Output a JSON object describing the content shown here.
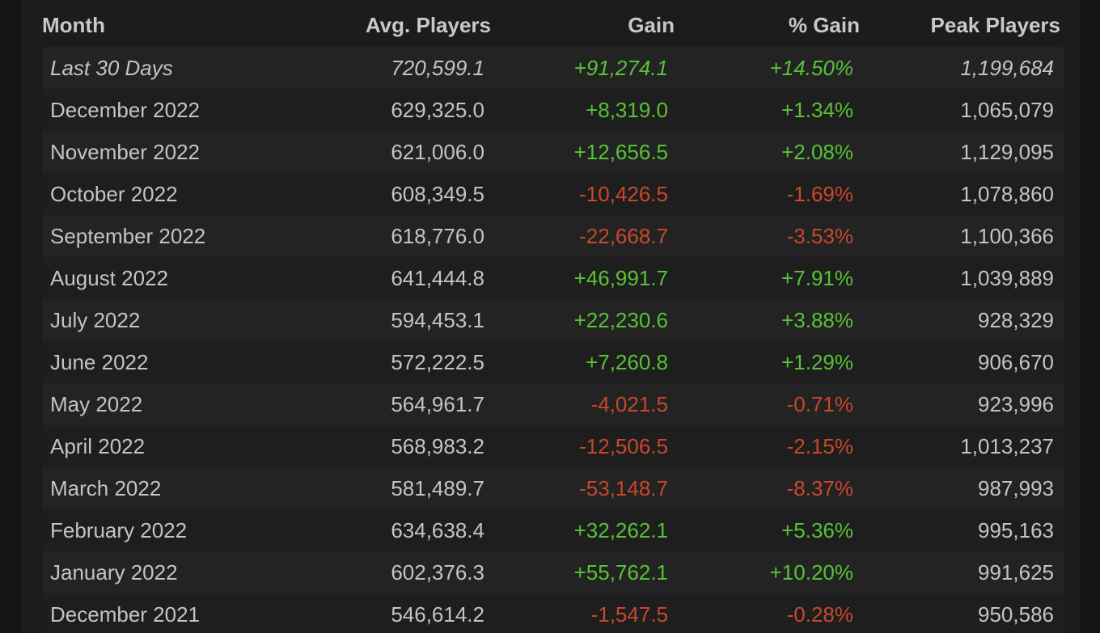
{
  "table": {
    "header": [
      "Month",
      "Avg. Players",
      "Gain",
      "% Gain",
      "Peak Players"
    ],
    "rows": [
      [
        "Last 30 Days",
        "720,599.1",
        "+91,274.1",
        "+14.50%",
        "1,199,684"
      ],
      [
        "December 2022",
        "629,325.0",
        "+8,319.0",
        "+1.34%",
        "1,065,079"
      ],
      [
        "November 2022",
        "621,006.0",
        "+12,656.5",
        "+2.08%",
        "1,129,095"
      ],
      [
        "October 2022",
        "608,349.5",
        "-10,426.5",
        "-1.69%",
        "1,078,860"
      ],
      [
        "September 2022",
        "618,776.0",
        "-22,668.7",
        "-3.53%",
        "1,100,366"
      ],
      [
        "August 2022",
        "641,444.8",
        "+46,991.7",
        "+7.91%",
        "1,039,889"
      ],
      [
        "July 2022",
        "594,453.1",
        "+22,230.6",
        "+3.88%",
        "928,329"
      ],
      [
        "June 2022",
        "572,222.5",
        "+7,260.8",
        "+1.29%",
        "906,670"
      ],
      [
        "May 2022",
        "564,961.7",
        "-4,021.5",
        "-0.71%",
        "923,996"
      ],
      [
        "April 2022",
        "568,983.2",
        "-12,506.5",
        "-2.15%",
        "1,013,237"
      ],
      [
        "March 2022",
        "581,489.7",
        "-53,148.7",
        "-8.37%",
        "987,993"
      ],
      [
        "February 2022",
        "634,638.4",
        "+32,262.1",
        "+5.36%",
        "995,163"
      ],
      [
        "January 2022",
        "602,376.3",
        "+55,762.1",
        "+10.20%",
        "991,625"
      ],
      [
        "December 2021",
        "546,614.2",
        "-1,547.5",
        "-0.28%",
        "950,586"
      ]
    ]
  }
}
